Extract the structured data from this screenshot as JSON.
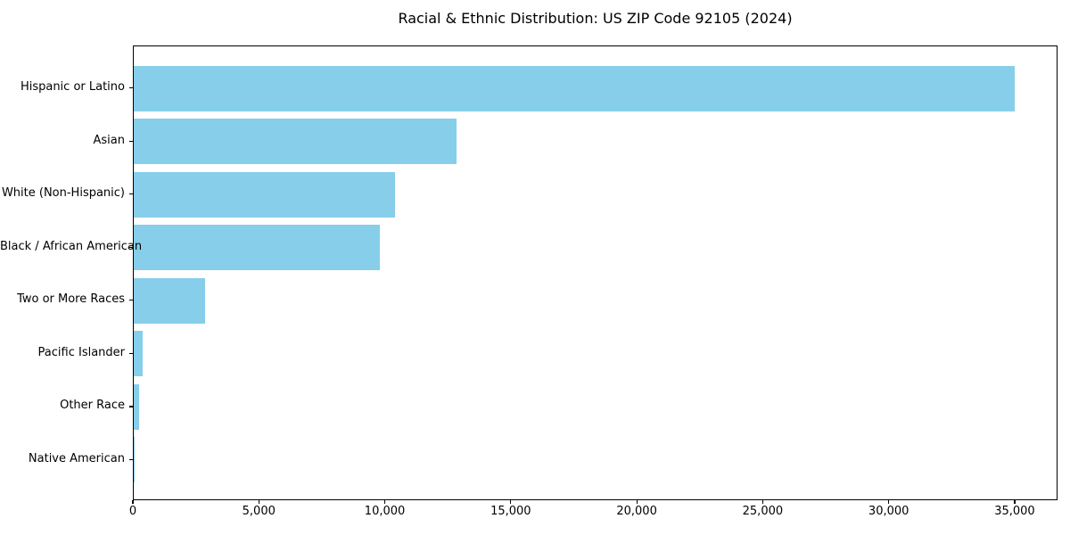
{
  "title": "Racial & Ethnic Distribution: US ZIP Code 92105 (2024)",
  "colors": {
    "bar": "#87CEEB",
    "axis": "#000000",
    "background": "#FFFFFF",
    "text": "#000000"
  },
  "chart_data": {
    "type": "bar",
    "orientation": "horizontal",
    "title": "Racial & Ethnic Distribution: US ZIP Code 92105 (2024)",
    "xlabel": "",
    "ylabel": "",
    "categories": [
      "Hispanic or Latino",
      "Asian",
      "White (Non-Hispanic)",
      "Black / African American",
      "Two or More Races",
      "Pacific Islander",
      "Other Race",
      "Native American"
    ],
    "values": [
      34950,
      12810,
      10360,
      9770,
      2830,
      350,
      200,
      50
    ],
    "xlim": [
      0,
      36700
    ],
    "x_ticks": [
      0,
      5000,
      10000,
      15000,
      20000,
      25000,
      30000,
      35000
    ],
    "x_tick_labels": [
      "0",
      "5,000",
      "10,000",
      "15,000",
      "20,000",
      "25,000",
      "30,000",
      "35,000"
    ],
    "bar_color": "#87CEEB",
    "grid": false,
    "legend": null
  }
}
